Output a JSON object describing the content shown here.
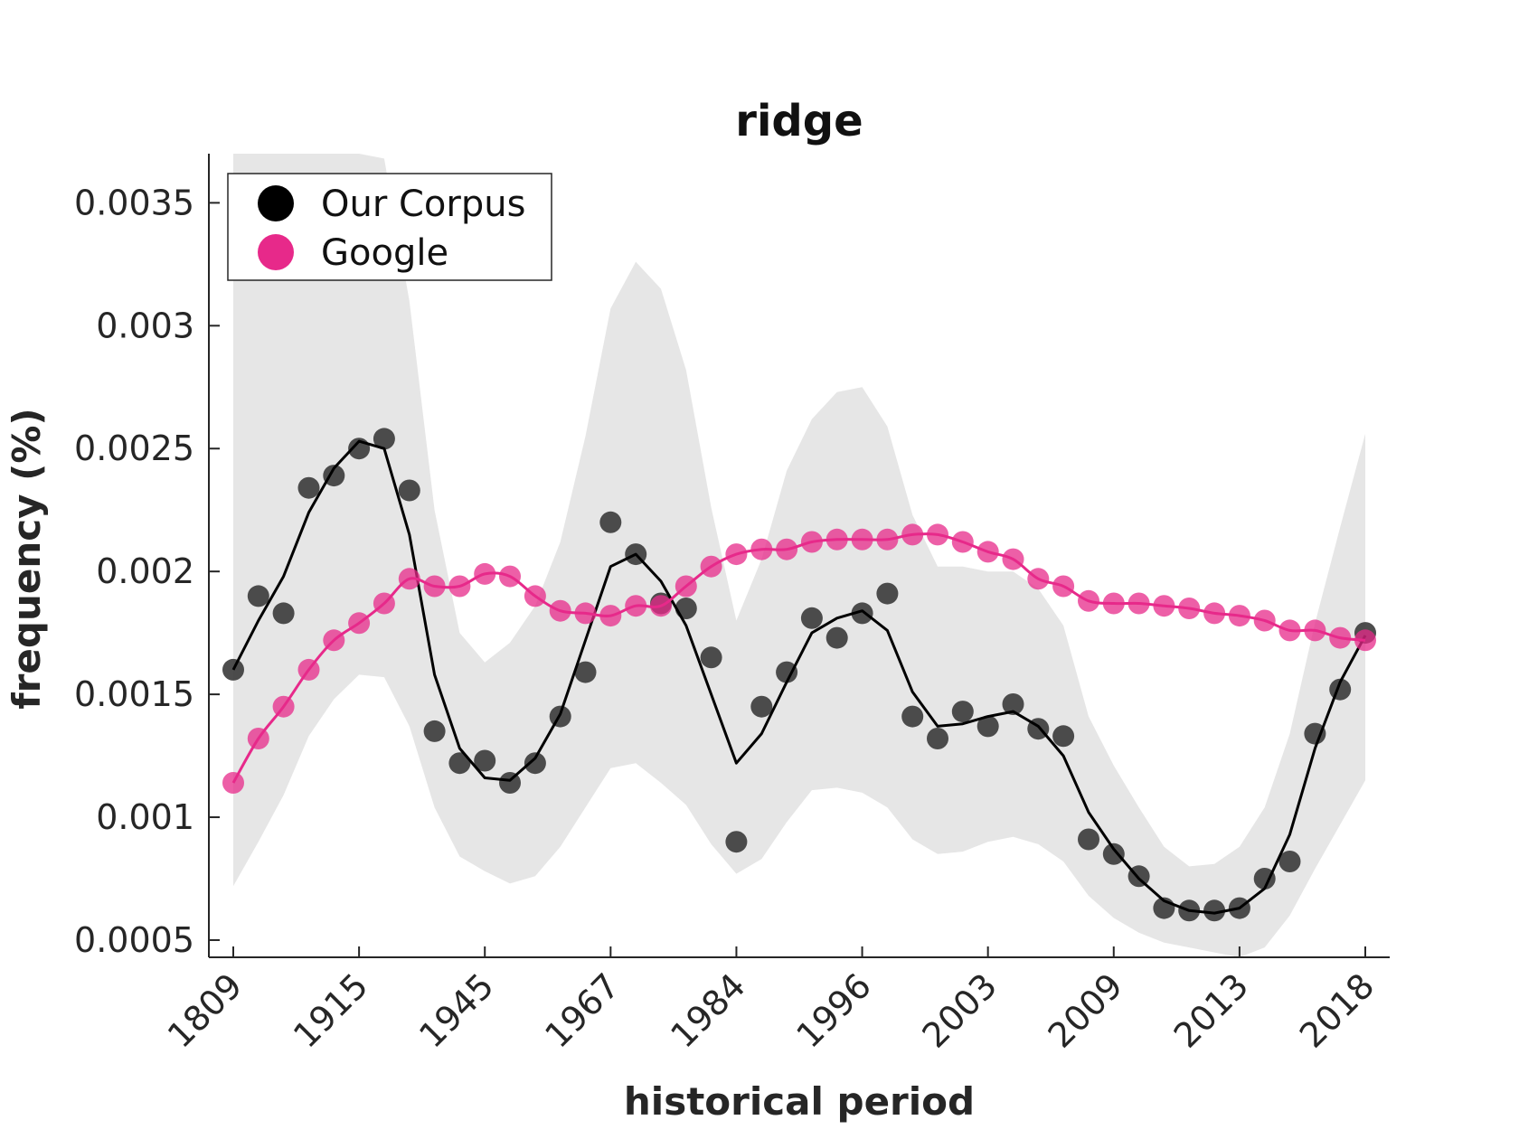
{
  "chart_data": {
    "type": "line",
    "title": "ridge",
    "xlabel": "historical period",
    "ylabel": "frequency (%)",
    "x_tick_labels": [
      "1809",
      "1915",
      "1945",
      "1967",
      "1984",
      "1996",
      "2003",
      "2009",
      "2013",
      "2018"
    ],
    "y_ticks": [
      0.0005,
      0.001,
      0.0015,
      0.002,
      0.0025,
      0.003,
      0.0035
    ],
    "y_tick_labels": [
      "0.0005",
      "0.001",
      "0.0015",
      "0.002",
      "0.0025",
      "0.003",
      "0.0035"
    ],
    "ylim": [
      0.00043,
      0.0037
    ],
    "legend": {
      "position": "top-left",
      "entries": [
        {
          "label": "Our Corpus",
          "color": "#000000"
        },
        {
          "label": "Google",
          "color": "#e7298a"
        }
      ]
    },
    "colors": {
      "corpus_points": "#3a3a3a",
      "corpus_line": "#000000",
      "google": "#e7298a",
      "band": "#e6e6e6"
    },
    "series": [
      {
        "name": "Our Corpus",
        "points": [
          0.0016,
          0.0019,
          0.00183,
          0.00234,
          0.00239,
          0.0025,
          0.00254,
          0.00233,
          0.00135,
          0.00122,
          0.00123,
          0.00114,
          0.00122,
          0.00141,
          0.00159,
          0.0022,
          0.00207,
          0.00187,
          0.00185,
          0.00165,
          0.0009,
          0.00145,
          0.00159,
          0.00181,
          0.00173,
          0.00183,
          0.00191,
          0.00141,
          0.00132,
          0.00143,
          0.00137,
          0.00146,
          0.00136,
          0.00133,
          0.00091,
          0.00085,
          0.00076,
          0.00063,
          0.00062,
          0.00062,
          0.00063,
          0.00075,
          0.00082,
          0.00134,
          0.00152,
          0.00175
        ],
        "trend": [
          0.0016,
          0.0018,
          0.00198,
          0.00224,
          0.00242,
          0.00253,
          0.0025,
          0.00215,
          0.00158,
          0.00128,
          0.00116,
          0.00115,
          0.00124,
          0.00142,
          0.00172,
          0.00202,
          0.00207,
          0.00196,
          0.00178,
          0.0015,
          0.00122,
          0.00134,
          0.00155,
          0.00175,
          0.00181,
          0.00184,
          0.00176,
          0.00151,
          0.00137,
          0.00138,
          0.00141,
          0.00143,
          0.00137,
          0.00125,
          0.00102,
          0.00087,
          0.00075,
          0.00066,
          0.00062,
          0.00061,
          0.00063,
          0.00071,
          0.00093,
          0.00128,
          0.00155,
          0.00174
        ],
        "band_upper": [
          0.0037,
          0.0037,
          0.0037,
          0.0037,
          0.0037,
          0.0037,
          0.00368,
          0.0031,
          0.00225,
          0.00175,
          0.00163,
          0.00171,
          0.00186,
          0.00212,
          0.00255,
          0.00307,
          0.00326,
          0.00315,
          0.00282,
          0.00226,
          0.0018,
          0.00205,
          0.00241,
          0.00262,
          0.00273,
          0.00275,
          0.00259,
          0.00223,
          0.00202,
          0.00202,
          0.002,
          0.002,
          0.00193,
          0.00178,
          0.00141,
          0.00121,
          0.00104,
          0.00088,
          0.0008,
          0.00081,
          0.00088,
          0.00104,
          0.00134,
          0.00179,
          0.00218,
          0.00256
        ],
        "band_lower": [
          0.00072,
          0.0009,
          0.00109,
          0.00133,
          0.00148,
          0.00158,
          0.00157,
          0.00137,
          0.00104,
          0.00084,
          0.00078,
          0.00073,
          0.00076,
          0.00088,
          0.00104,
          0.0012,
          0.00122,
          0.00114,
          0.00105,
          0.00089,
          0.00077,
          0.00083,
          0.00098,
          0.00111,
          0.00112,
          0.0011,
          0.00104,
          0.00091,
          0.00085,
          0.00086,
          0.0009,
          0.00092,
          0.00089,
          0.00082,
          0.00068,
          0.00059,
          0.00053,
          0.00049,
          0.00047,
          0.00045,
          0.00043,
          0.00047,
          0.0006,
          0.00079,
          0.00097,
          0.00115
        ]
      },
      {
        "name": "Google",
        "points": [
          0.00114,
          0.00132,
          0.00145,
          0.0016,
          0.00172,
          0.00179,
          0.00187,
          0.00197,
          0.00194,
          0.00194,
          0.00199,
          0.00198,
          0.0019,
          0.00184,
          0.00183,
          0.00182,
          0.00186,
          0.00186,
          0.00194,
          0.00202,
          0.00207,
          0.00209,
          0.00209,
          0.00212,
          0.00213,
          0.00213,
          0.00213,
          0.00215,
          0.00215,
          0.00212,
          0.00208,
          0.00205,
          0.00197,
          0.00194,
          0.00188,
          0.00187,
          0.00187,
          0.00186,
          0.00185,
          0.00183,
          0.00182,
          0.0018,
          0.00176,
          0.00176,
          0.00173,
          0.00172
        ]
      }
    ]
  }
}
